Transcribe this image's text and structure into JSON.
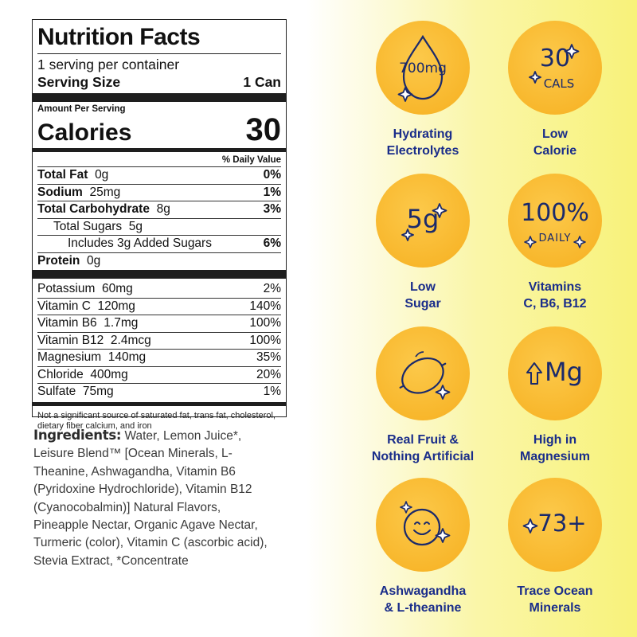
{
  "nutrition": {
    "title": "Nutrition Facts",
    "servings": "1 serving per container",
    "serving_size_label": "Serving Size",
    "serving_size_value": "1 Can",
    "amount_per_serving": "Amount Per Serving",
    "calories_label": "Calories",
    "calories_value": "30",
    "dv_header": "% Daily Value",
    "macros": [
      {
        "label": "Total Fat",
        "amount": "0g",
        "dv": "0%"
      },
      {
        "label": "Sodium",
        "amount": "25mg",
        "dv": "1%"
      },
      {
        "label": "Total Carbohydrate",
        "amount": "8g",
        "dv": "3%"
      },
      {
        "label": "Total Sugars",
        "amount": "5g",
        "dv": ""
      },
      {
        "label": "Includes 3g Added Sugars",
        "amount": "",
        "dv": "6%"
      },
      {
        "label": "Protein",
        "amount": "0g",
        "dv": ""
      }
    ],
    "micros": [
      {
        "label": "Potassium",
        "amount": "60mg",
        "dv": "2%"
      },
      {
        "label": "Vitamin C",
        "amount": "120mg",
        "dv": "140%"
      },
      {
        "label": "Vitamin B6",
        "amount": "1.7mg",
        "dv": "100%"
      },
      {
        "label": "Vitamin B12",
        "amount": "2.4mcg",
        "dv": "100%"
      },
      {
        "label": "Magnesium",
        "amount": "140mg",
        "dv": "35%"
      },
      {
        "label": "Chloride",
        "amount": "400mg",
        "dv": "20%"
      },
      {
        "label": "Sulfate",
        "amount": "75mg",
        "dv": "1%"
      }
    ],
    "footnote": "Not a significant source of saturated fat, trans fat, cholesterol, dietary fiber calcium, and iron"
  },
  "ingredients": {
    "title": "Ingredients:",
    "text": "Water, Lemon Juice*, Leisure Blend™ [Ocean Minerals, L-Theanine, Ashwagandha, Vitamin B6 (Pyridoxine Hydrochloride), Vitamin B12 (Cyanocobalmin)] Natural Flavors, Pineapple Nectar, Organic Agave Nectar, Turmeric (color), Vitamin C (ascorbic acid), Stevia Extract, *Concentrate"
  },
  "badges": {
    "electrolytes": {
      "icon": "water-drop-icon",
      "value": "700mg",
      "line1": "Hydrating",
      "line2": "Electrolytes"
    },
    "calorie": {
      "icon": "sparkle-icon",
      "value": "30",
      "unit": "CALS",
      "line1": "Low",
      "line2": "Calorie"
    },
    "sugar": {
      "icon": "sparkle-icon",
      "value": "5g",
      "line1": "Low",
      "line2": "Sugar"
    },
    "vitamins": {
      "icon": "sparkle-icon",
      "value": "100%",
      "unit": "DAILY",
      "line1": "Vitamins",
      "line2": "C, B6, B12"
    },
    "fruit": {
      "icon": "lemon-icon",
      "line1": "Real Fruit &",
      "line2": "Nothing Artificial"
    },
    "magnesium": {
      "icon": "up-arrow-icon",
      "value": "Mg",
      "line1": "High in",
      "line2": "Magnesium"
    },
    "ashwagandha": {
      "icon": "smiley-icon",
      "line1": "Ashwagandha",
      "line2": "& L-theanine"
    },
    "minerals": {
      "icon": "sparkle-icon",
      "value": "73+",
      "line1": "Trace Ocean",
      "line2": "Minerals"
    }
  },
  "colors": {
    "badge_fill": "#f8b72c",
    "label_blue": "#1a2d8a",
    "icon_navy": "#1b2a6b"
  }
}
